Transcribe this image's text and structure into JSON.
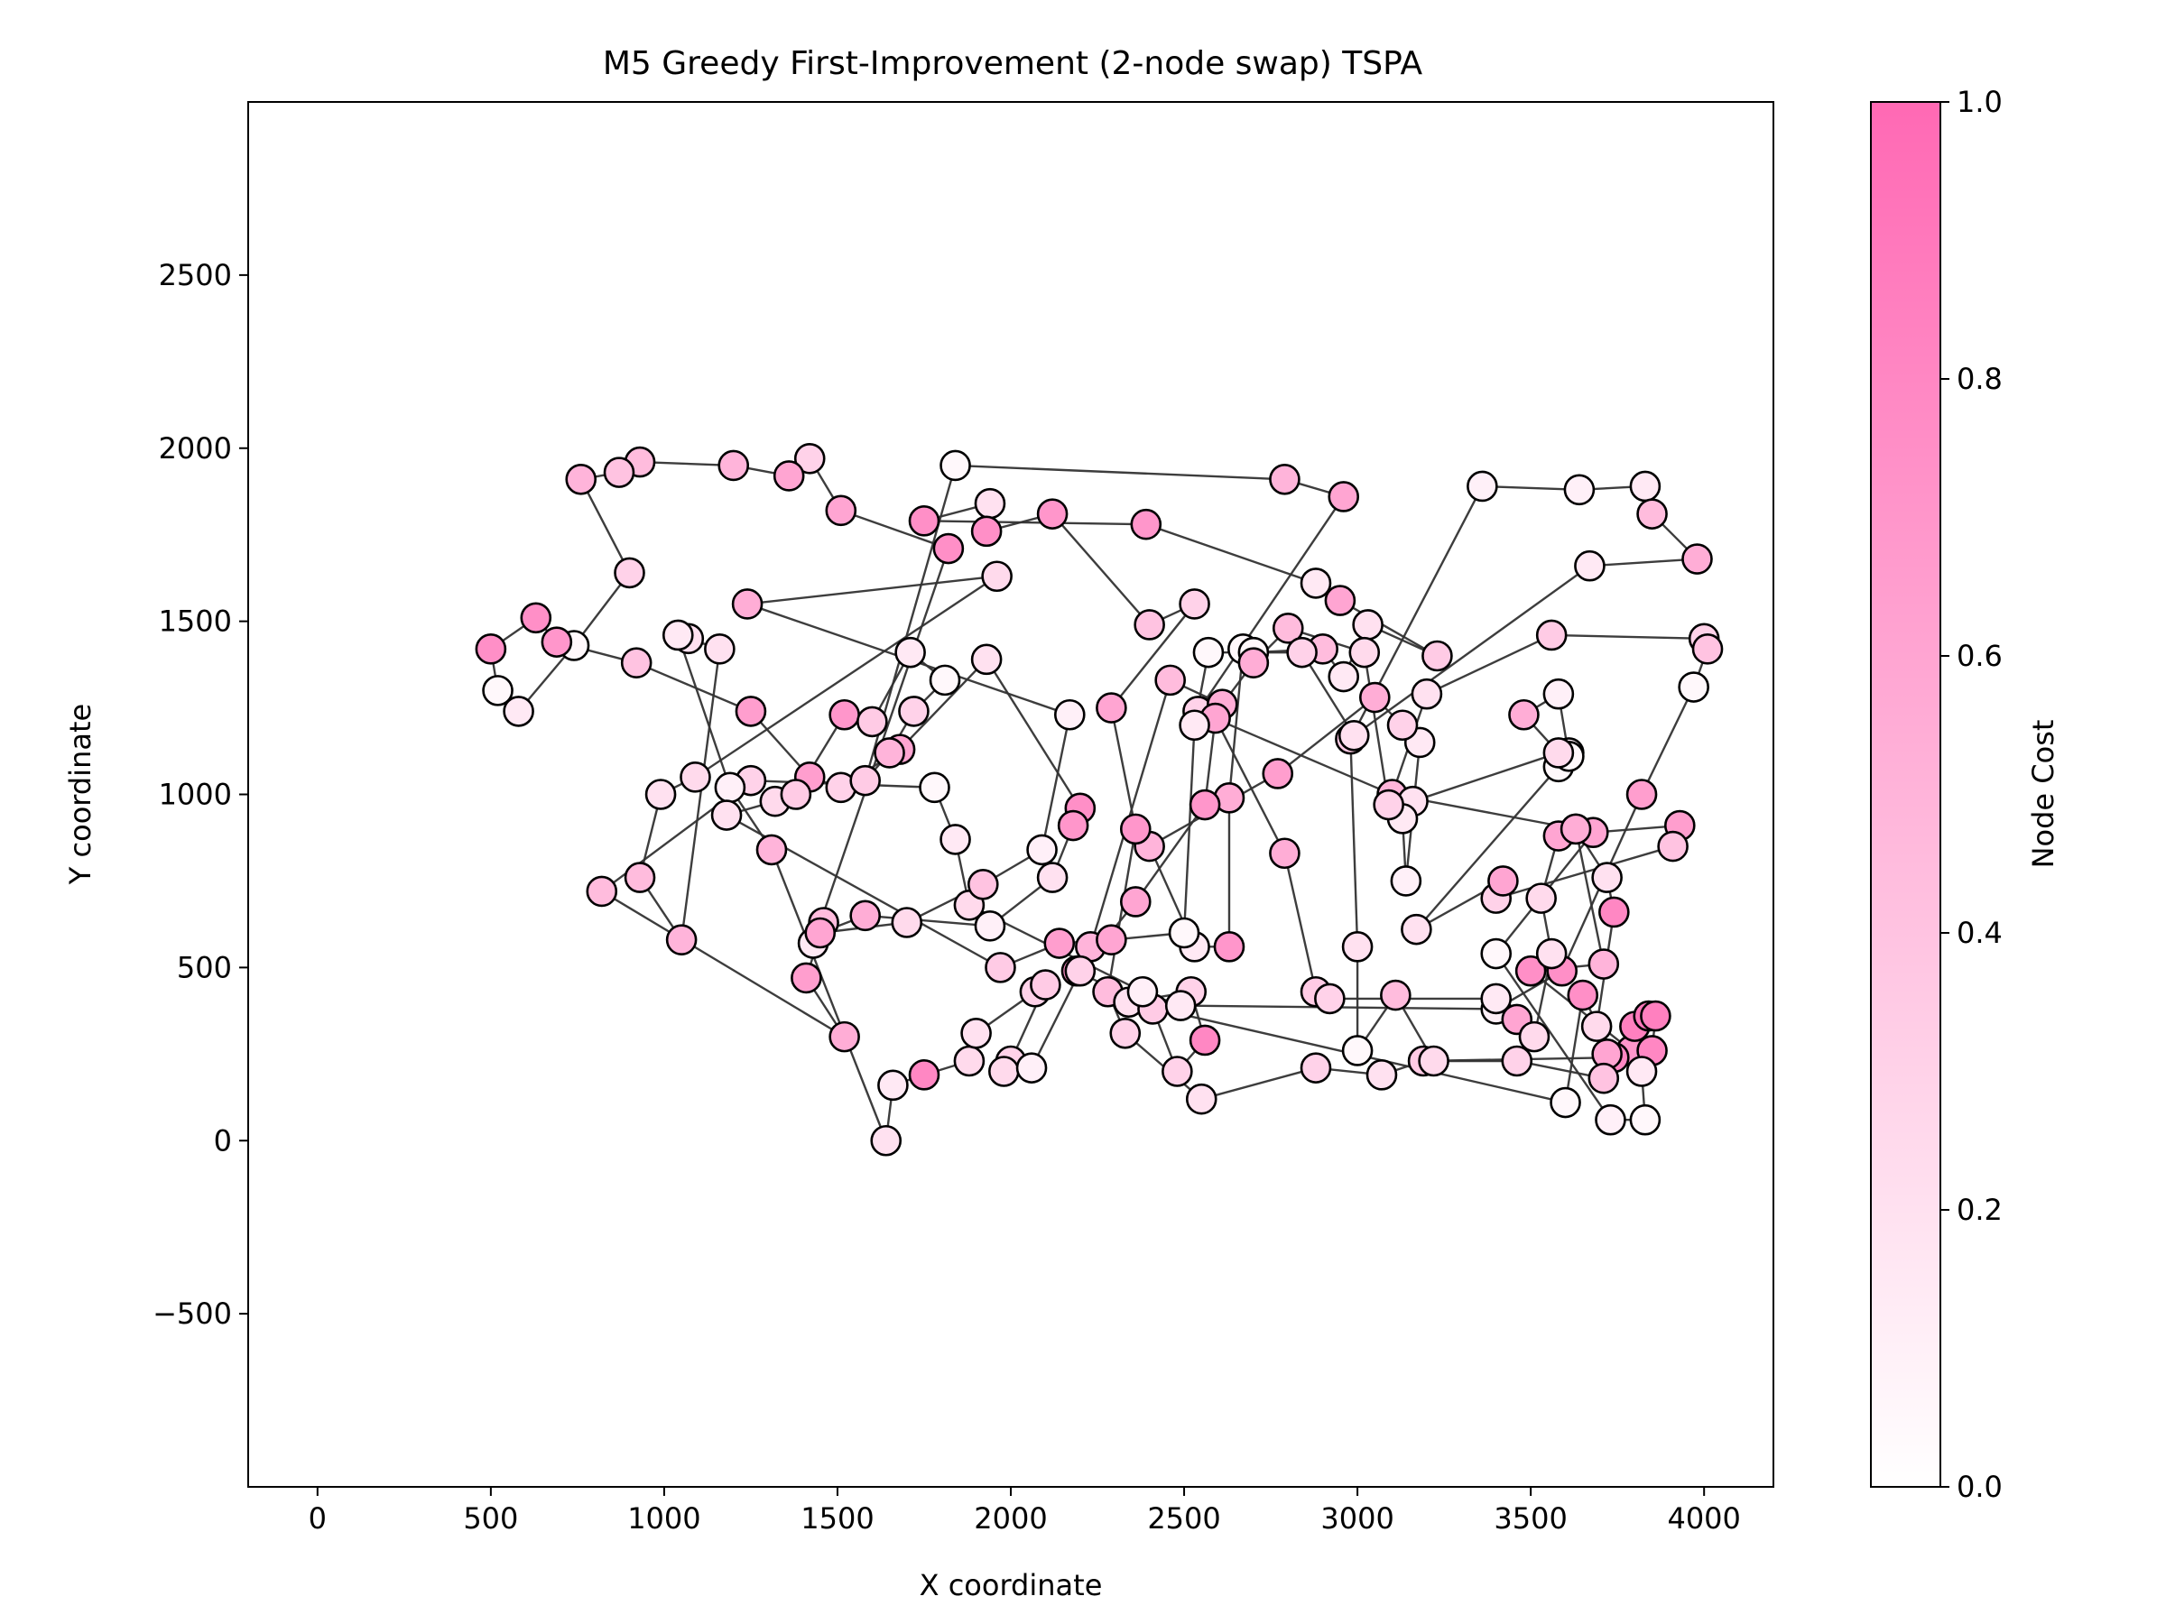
{
  "chart_data": {
    "type": "scatter",
    "title": "M5 Greedy First-Improvement (2-node swap) TSPA",
    "xlabel": "X coordinate",
    "ylabel": "Y coordinate",
    "xlim": [
      -200,
      4200
    ],
    "ylim": [
      -1000,
      3000
    ],
    "xticks": [
      0,
      500,
      1000,
      1500,
      2000,
      2500,
      3000,
      3500,
      4000
    ],
    "yticks": [
      -500,
      0,
      500,
      1000,
      1500,
      2000,
      2500
    ],
    "xtick_labels": [
      "0",
      "500",
      "1000",
      "1500",
      "2000",
      "2500",
      "3000",
      "3500",
      "4000"
    ],
    "ytick_labels": [
      "−500",
      "0",
      "500",
      "1000",
      "1500",
      "2000",
      "2500"
    ],
    "grid": false,
    "colorbar": {
      "label": "Node Cost",
      "range": [
        0.0,
        1.0
      ],
      "ticks": [
        0.0,
        0.2,
        0.4,
        0.6,
        0.8,
        1.0
      ],
      "tick_labels": [
        "0.0",
        "0.2",
        "0.4",
        "0.6",
        "0.8",
        "1.0"
      ],
      "color_low": "#ffffff",
      "color_high": "#ff69b4"
    },
    "edge_color": "#333333",
    "marker_edge_color": "#000000",
    "tour": [
      [
        1840,
        1950,
        0.05
      ],
      [
        2790,
        1910,
        0.5
      ],
      [
        2960,
        1860,
        0.6
      ],
      [
        2540,
        1240,
        0.3
      ],
      [
        3100,
        1000,
        0.5
      ],
      [
        3630,
        900,
        0.6
      ],
      [
        3710,
        510,
        0.5
      ],
      [
        3500,
        490,
        0.75
      ],
      [
        3790,
        260,
        0.7
      ],
      [
        3800,
        330,
        0.85
      ],
      [
        3840,
        360,
        0.9
      ],
      [
        3860,
        360,
        0.85
      ],
      [
        3850,
        260,
        0.8
      ],
      [
        3820,
        200,
        0.15
      ],
      [
        3830,
        60,
        0.05
      ],
      [
        3730,
        60,
        0.1
      ],
      [
        3400,
        540,
        0.05
      ],
      [
        3680,
        890,
        0.6
      ],
      [
        3930,
        910,
        0.65
      ],
      [
        3910,
        850,
        0.4
      ],
      [
        3400,
        700,
        0.3
      ],
      [
        3420,
        750,
        0.6
      ],
      [
        3170,
        610,
        0.2
      ],
      [
        3580,
        1080,
        0.05
      ],
      [
        3610,
        1120,
        0.1
      ],
      [
        3610,
        1110,
        0.05
      ],
      [
        3580,
        1290,
        0.1
      ],
      [
        3480,
        1230,
        0.55
      ],
      [
        3580,
        1120,
        0.25
      ],
      [
        3160,
        980,
        0.2
      ],
      [
        3130,
        930,
        0.15
      ],
      [
        3140,
        750,
        0.1
      ],
      [
        3180,
        1150,
        0.15
      ],
      [
        3130,
        1200,
        0.3
      ],
      [
        3050,
        1280,
        0.55
      ],
      [
        2770,
        1060,
        0.65
      ],
      [
        2400,
        850,
        0.5
      ],
      [
        2530,
        560,
        0.15
      ],
      [
        2630,
        560,
        0.7
      ],
      [
        2630,
        990,
        0.55
      ],
      [
        2670,
        1420,
        0.05
      ],
      [
        2700,
        1410,
        0.05
      ],
      [
        2900,
        1420,
        0.45
      ],
      [
        2960,
        1340,
        0.15
      ],
      [
        3030,
        1490,
        0.2
      ],
      [
        3230,
        1400,
        0.35
      ],
      [
        2950,
        1560,
        0.6
      ],
      [
        2880,
        1610,
        0.15
      ],
      [
        2390,
        1780,
        0.7
      ],
      [
        1750,
        1790,
        0.75
      ],
      [
        1940,
        1840,
        0.2
      ],
      [
        1930,
        1760,
        0.75
      ],
      [
        2120,
        1810,
        0.7
      ],
      [
        2400,
        1490,
        0.4
      ],
      [
        2530,
        1550,
        0.3
      ],
      [
        2290,
        1250,
        0.6
      ],
      [
        2360,
        900,
        0.7
      ],
      [
        2280,
        430,
        0.45
      ],
      [
        2330,
        310,
        0.3
      ],
      [
        2550,
        120,
        0.2
      ],
      [
        2880,
        210,
        0.3
      ],
      [
        3070,
        190,
        0.2
      ],
      [
        3190,
        230,
        0.35
      ],
      [
        3740,
        240,
        0.8
      ],
      [
        3650,
        420,
        0.75
      ],
      [
        3600,
        110,
        0.05
      ],
      [
        2340,
        400,
        0.2
      ],
      [
        2520,
        430,
        0.3
      ],
      [
        2560,
        290,
        0.8
      ],
      [
        2480,
        200,
        0.3
      ],
      [
        2410,
        380,
        0.35
      ],
      [
        2190,
        490,
        0.75
      ],
      [
        2230,
        560,
        0.5
      ],
      [
        2460,
        1330,
        0.45
      ],
      [
        2610,
        1260,
        0.55
      ],
      [
        2700,
        1380,
        0.55
      ],
      [
        2800,
        1480,
        0.45
      ],
      [
        3020,
        1410,
        0.25
      ],
      [
        3090,
        970,
        0.3
      ],
      [
        3200,
        1290,
        0.2
      ],
      [
        3560,
        1460,
        0.35
      ],
      [
        4000,
        1450,
        0.3
      ],
      [
        4010,
        1420,
        0.4
      ],
      [
        3970,
        1310,
        0.05
      ],
      [
        3820,
        1000,
        0.65
      ],
      [
        3590,
        490,
        0.75
      ],
      [
        3400,
        380,
        0.1
      ],
      [
        2490,
        390,
        0.15
      ],
      [
        2380,
        430,
        0.1
      ],
      [
        1880,
        680,
        0.25
      ],
      [
        1840,
        870,
        0.15
      ],
      [
        1780,
        1020,
        0.05
      ],
      [
        1250,
        1040,
        0.3
      ],
      [
        820,
        720,
        0.45
      ],
      [
        1520,
        300,
        0.55
      ],
      [
        1410,
        470,
        0.65
      ],
      [
        1460,
        630,
        0.45
      ],
      [
        1430,
        570,
        0.15
      ],
      [
        1820,
        1710,
        0.75
      ],
      [
        1510,
        1820,
        0.6
      ],
      [
        1420,
        1970,
        0.3
      ],
      [
        1360,
        1920,
        0.6
      ],
      [
        1200,
        1950,
        0.5
      ],
      [
        930,
        1960,
        0.45
      ],
      [
        870,
        1930,
        0.4
      ],
      [
        760,
        1910,
        0.5
      ],
      [
        900,
        1640,
        0.3
      ],
      [
        740,
        1430,
        0.05
      ],
      [
        580,
        1240,
        0.15
      ],
      [
        520,
        1300,
        0.05
      ],
      [
        500,
        1420,
        0.75
      ],
      [
        630,
        1510,
        0.75
      ],
      [
        690,
        1440,
        0.7
      ],
      [
        920,
        1380,
        0.4
      ],
      [
        1250,
        1240,
        0.65
      ],
      [
        1420,
        1050,
        0.65
      ],
      [
        1510,
        1020,
        0.3
      ],
      [
        1680,
        1130,
        0.6
      ],
      [
        1930,
        1390,
        0.2
      ],
      [
        2200,
        960,
        0.75
      ],
      [
        2180,
        910,
        0.7
      ],
      [
        2120,
        760,
        0.2
      ],
      [
        1940,
        620,
        0.1
      ],
      [
        1580,
        650,
        0.55
      ],
      [
        1450,
        600,
        0.6
      ],
      [
        1700,
        630,
        0.25
      ],
      [
        1920,
        740,
        0.4
      ],
      [
        2090,
        840,
        0.1
      ],
      [
        2170,
        1230,
        0.1
      ],
      [
        1240,
        1550,
        0.55
      ],
      [
        1960,
        1630,
        0.25
      ],
      [
        1090,
        1050,
        0.25
      ],
      [
        990,
        1000,
        0.2
      ],
      [
        930,
        760,
        0.45
      ],
      [
        1050,
        580,
        0.5
      ],
      [
        1160,
        1420,
        0.2
      ],
      [
        1070,
        1450,
        0.2
      ],
      [
        1040,
        1460,
        0.15
      ],
      [
        1190,
        1020,
        0.1
      ],
      [
        1310,
        840,
        0.5
      ],
      [
        1640,
        0,
        0.2
      ],
      [
        1660,
        160,
        0.15
      ],
      [
        1750,
        190,
        0.8
      ],
      [
        1880,
        230,
        0.25
      ],
      [
        1900,
        310,
        0.2
      ],
      [
        2070,
        430,
        0.3
      ],
      [
        2100,
        450,
        0.35
      ],
      [
        2000,
        230,
        0.3
      ],
      [
        1980,
        200,
        0.25
      ],
      [
        2060,
        210,
        0.1
      ],
      [
        2200,
        490,
        0.3
      ],
      [
        2360,
        690,
        0.6
      ],
      [
        2560,
        970,
        0.7
      ],
      [
        2590,
        1220,
        0.6
      ],
      [
        2790,
        830,
        0.55
      ],
      [
        2880,
        430,
        0.35
      ],
      [
        2920,
        410,
        0.3
      ],
      [
        3400,
        410,
        0.15
      ],
      [
        3460,
        350,
        0.6
      ],
      [
        3510,
        300,
        0.25
      ],
      [
        3560,
        540,
        0.2
      ],
      [
        3530,
        700,
        0.25
      ],
      [
        3580,
        880,
        0.6
      ],
      [
        3630,
        900,
        0.55
      ],
      [
        3720,
        760,
        0.2
      ],
      [
        3740,
        660,
        0.8
      ],
      [
        3690,
        330,
        0.25
      ],
      [
        3720,
        250,
        0.6
      ],
      [
        3710,
        180,
        0.4
      ],
      [
        3460,
        230,
        0.3
      ],
      [
        3220,
        230,
        0.25
      ],
      [
        3110,
        420,
        0.45
      ],
      [
        3000,
        260,
        0.05
      ],
      [
        3000,
        560,
        0.2
      ],
      [
        2980,
        1160,
        0.35
      ],
      [
        3360,
        1890,
        0.1
      ],
      [
        3640,
        1880,
        0.1
      ],
      [
        3830,
        1890,
        0.15
      ],
      [
        3850,
        1810,
        0.45
      ],
      [
        3980,
        1680,
        0.55
      ],
      [
        3670,
        1660,
        0.15
      ],
      [
        2990,
        1170,
        0.2
      ],
      [
        2840,
        1410,
        0.3
      ],
      [
        2570,
        1410,
        0.05
      ],
      [
        2530,
        1200,
        0.15
      ],
      [
        2500,
        600,
        0.05
      ],
      [
        2290,
        580,
        0.6
      ],
      [
        2140,
        570,
        0.65
      ],
      [
        1970,
        500,
        0.35
      ],
      [
        1180,
        940,
        0.2
      ],
      [
        1320,
        980,
        0.25
      ],
      [
        1380,
        1000,
        0.35
      ],
      [
        1520,
        1230,
        0.7
      ],
      [
        1600,
        1210,
        0.35
      ],
      [
        1710,
        1410,
        0.15
      ],
      [
        1810,
        1330,
        0.05
      ],
      [
        1720,
        1240,
        0.3
      ],
      [
        1650,
        1120,
        0.5
      ],
      [
        1580,
        1040,
        0.35
      ]
    ],
    "note_tour": "tour = [x, y, node_cost] in visit order; path closes back to the first node"
  }
}
